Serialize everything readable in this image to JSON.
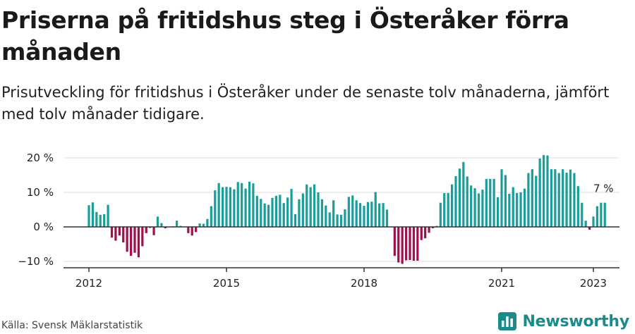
{
  "title": "Priserna på fritidshus steg i Österåker förra månaden",
  "subtitle": "Prisutveckling för fritidshus i Österåker under de senaste tolv månaderna, jämfört med tolv månader tidigare.",
  "source": "Källa: Svensk Mäklarstatistik",
  "brand": {
    "name": "Newsworthy",
    "icon": "bar-chart-logo-icon",
    "color": "#1a8a8a"
  },
  "chart_data": {
    "type": "bar",
    "ylim": [
      -12,
      22
    ],
    "yticks": [
      -10,
      0,
      10,
      20
    ],
    "ytick_labels": [
      "−10 %",
      "0 %",
      "10 %",
      "20 %"
    ],
    "xticks": [
      2012,
      2015,
      2018,
      2021,
      2023
    ],
    "xtick_labels": [
      "2012",
      "2015",
      "2018",
      "2021",
      "2023"
    ],
    "x_start": "2012-01",
    "colors": {
      "positive": "#1a9e9a",
      "negative": "#a0104f",
      "axis": "#333333",
      "grid": "#dddddd"
    },
    "annotation": {
      "text": "7 %",
      "month": "2023-01"
    },
    "series": [
      {
        "values": [
          6.3,
          7.1,
          4.3,
          3.5,
          3.7,
          6.4,
          -3.1,
          -4.0,
          -2.5,
          -4.5,
          -7.2,
          -8.4,
          -7.5,
          -8.8,
          -5.6,
          -1.8,
          -0.3,
          -2.4,
          3.0,
          1.1,
          -0.4,
          0,
          0.2,
          1.8,
          0.3,
          0.1,
          -1.8,
          -2.5,
          -1.5,
          1.0,
          0.9,
          2.3,
          6.0,
          10.6,
          12.7,
          11.5,
          11.6,
          11.5,
          10.9,
          13.0,
          12.7,
          11.1,
          13.1,
          12.6,
          9.0,
          8.1,
          6.8,
          6.4,
          8.4,
          9.0,
          9.3,
          6.9,
          8.5,
          11.0,
          3.7,
          8.0,
          9.7,
          12.3,
          11.5,
          12.3,
          10.0,
          8.0,
          6.2,
          4.2,
          7.7,
          3.6,
          3.5,
          5.1,
          8.7,
          9.1,
          7.7,
          6.9,
          6.1,
          7.2,
          7.3,
          10.1,
          6.8,
          6.9,
          5.0,
          0,
          -8.4,
          -10.3,
          -10.7,
          -9.7,
          -9.6,
          -9.8,
          -9.8,
          -3.8,
          -3.3,
          -1.7,
          -0.4,
          0.3,
          7.0,
          9.8,
          9.8,
          12.3,
          14.7,
          16.9,
          18.8,
          14.6,
          12.0,
          11.2,
          9.7,
          10.8,
          13.9,
          13.9,
          13.9,
          8.6,
          16.7,
          15.0,
          9.6,
          11.5,
          9.8,
          10.0,
          11.1,
          15.6,
          16.7,
          14.8,
          19.8,
          20.8,
          20.7,
          16.7,
          16.7,
          15.6,
          16.7,
          15.7,
          16.6,
          15.6,
          11.8,
          7.0,
          1.8,
          -0.8,
          3.0,
          6.0,
          7.0,
          7.0
        ]
      }
    ]
  }
}
